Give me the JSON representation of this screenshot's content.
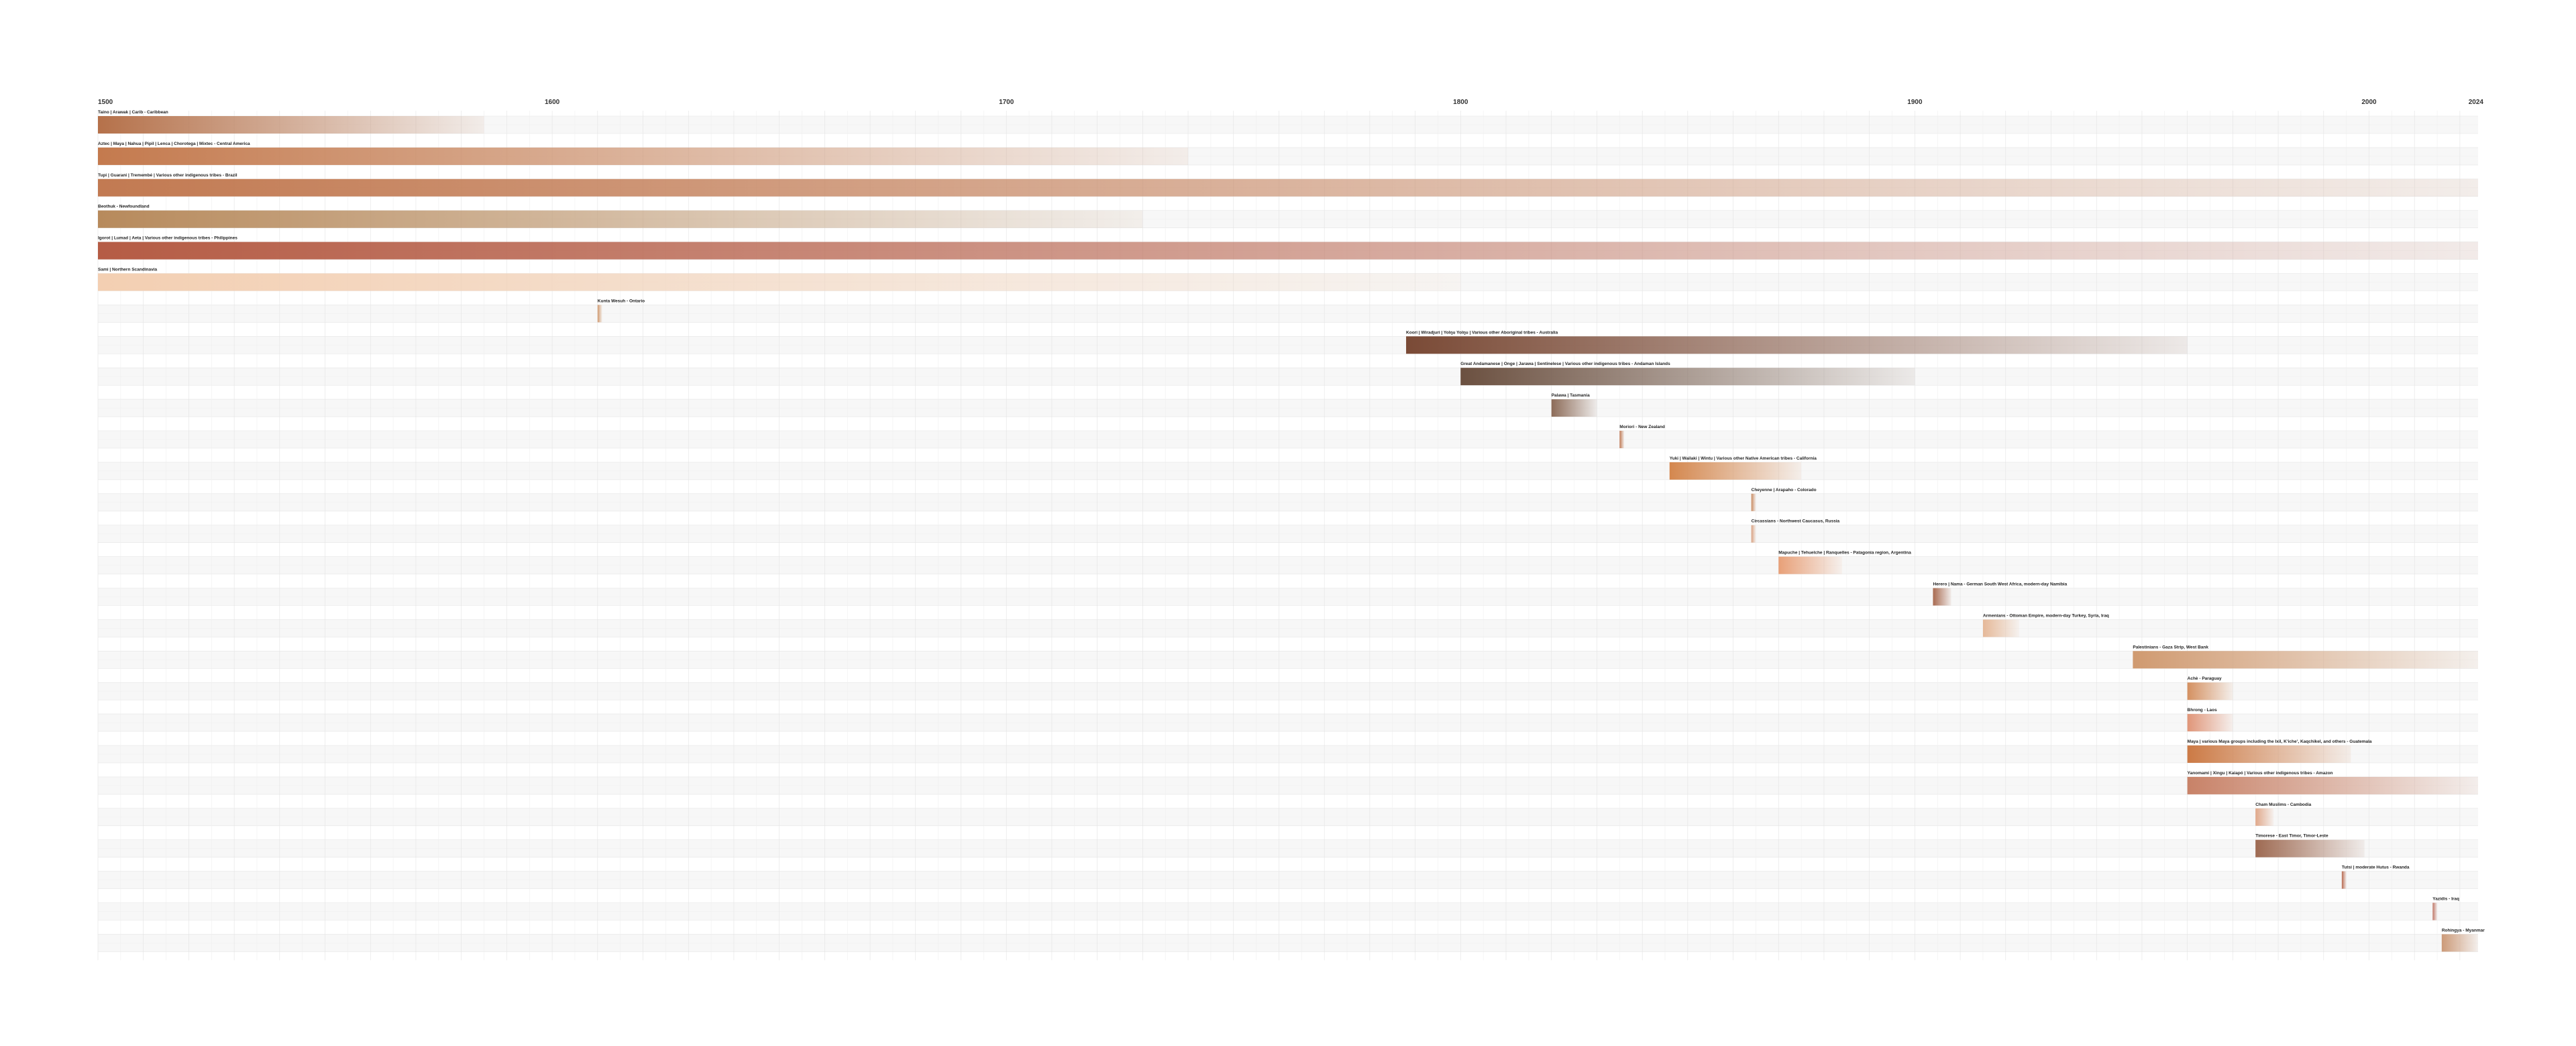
{
  "chart_data": {
    "type": "timeline",
    "title": "",
    "xlabel": "",
    "ylabel": "",
    "xlim": [
      1500,
      2024
    ],
    "x_ticks": [
      1500,
      1600,
      1700,
      1800,
      1900,
      2000,
      2024
    ],
    "grid": true,
    "series": [
      {
        "label": "Taino | Arawak | Carib - Caribbean",
        "start": 1500,
        "end": 1585,
        "color": "#b5714a"
      },
      {
        "label": "Aztec | Maya | Nahua | Pipil | Lenca | Chorotega | Mixtec - Central America",
        "start": 1500,
        "end": 1740,
        "color": "#c47a4e"
      },
      {
        "label": "Tupi | Guarani | Tremembé | Various other indigenous tribes - Brazil",
        "start": 1500,
        "end": 2024,
        "color": "#c27a52"
      },
      {
        "label": "Beothuk - Newfoundland",
        "start": 1500,
        "end": 1730,
        "color": "#b78a5c"
      },
      {
        "label": "Igorot | Lumad | Aeta | Various other indigenous tribes - Philippines",
        "start": 1500,
        "end": 2024,
        "color": "#b55c45"
      },
      {
        "label": "Sami | Northern Scandinavia",
        "start": 1500,
        "end": 1800,
        "color": "#f3cfb2"
      },
      {
        "label": "Kunta Wesuh - Ontario",
        "start": 1610,
        "end": 1611,
        "color": "#d09a70"
      },
      {
        "label": "Koori | Wiradjuri | Yolŋu Yolŋu | Various other Aboriginal tribes - Australia",
        "start": 1788,
        "end": 1960,
        "color": "#7a4a36"
      },
      {
        "label": "Great Andamanese | Onge | Jarawa | Sentinelese | Various other indigenous tribes - Andaman Islands",
        "start": 1800,
        "end": 1900,
        "color": "#6b5040"
      },
      {
        "label": "Palawa | Tasmania",
        "start": 1820,
        "end": 1830,
        "color": "#8c6b58"
      },
      {
        "label": "Moriori - New Zealand",
        "start": 1835,
        "end": 1836,
        "color": "#c07a55"
      },
      {
        "label": "Yuki | Wailaki | Wintu | Various other Native American tribes - California",
        "start": 1846,
        "end": 1875,
        "color": "#d4874e"
      },
      {
        "label": "Cheyenne | Arapaho - Colorado",
        "start": 1864,
        "end": 1865,
        "color": "#c88a60"
      },
      {
        "label": "Circassians - Northwest Caucasus, Russia",
        "start": 1864,
        "end": 1865,
        "color": "#d8a080"
      },
      {
        "label": "Mapuche | Tehuelche | Ranquelles - Patagonia region, Argentina",
        "start": 1870,
        "end": 1884,
        "color": "#e8a078"
      },
      {
        "label": "Herero | Nama - German South West Africa, modern-day Namibia",
        "start": 1904,
        "end": 1908,
        "color": "#a86a50"
      },
      {
        "label": "Armenians - Ottoman Empire, modern-day Turkey, Syria, Iraq",
        "start": 1915,
        "end": 1923,
        "color": "#e5b898"
      },
      {
        "label": "Palestinians - Gaza Strip, West Bank",
        "start": 1948,
        "end": 2024,
        "color": "#d09a70"
      },
      {
        "label": "Achè - Paraguay",
        "start": 1960,
        "end": 1970,
        "color": "#d49060"
      },
      {
        "label": "Bhrong - Laos",
        "start": 1960,
        "end": 1970,
        "color": "#e09578"
      },
      {
        "label": "Maya | various Maya groups including the Ixil, Kʼicheʼ, Kaqchikel, and others - Guatemala",
        "start": 1960,
        "end": 1996,
        "color": "#cc7a45"
      },
      {
        "label": "Yanomami | Xingu | Kaiapó | Various other indigenous tribes - Amazon",
        "start": 1960,
        "end": 2024,
        "color": "#c88268"
      },
      {
        "label": "Cham Muslims - Cambodia",
        "start": 1975,
        "end": 1979,
        "color": "#e0a88a"
      },
      {
        "label": "Timorese - East Timor, Timor-Leste",
        "start": 1975,
        "end": 1999,
        "color": "#9e6a52"
      },
      {
        "label": "Tutsi | moderate Hutus - Rwanda",
        "start": 1994,
        "end": 1995,
        "color": "#b86a50"
      },
      {
        "label": "Yazidis - Iraq",
        "start": 2014,
        "end": 2015,
        "color": "#c07868"
      },
      {
        "label": "Rohingya - Myanmar",
        "start": 2016,
        "end": 2024,
        "color": "#cc9a78"
      }
    ]
  }
}
